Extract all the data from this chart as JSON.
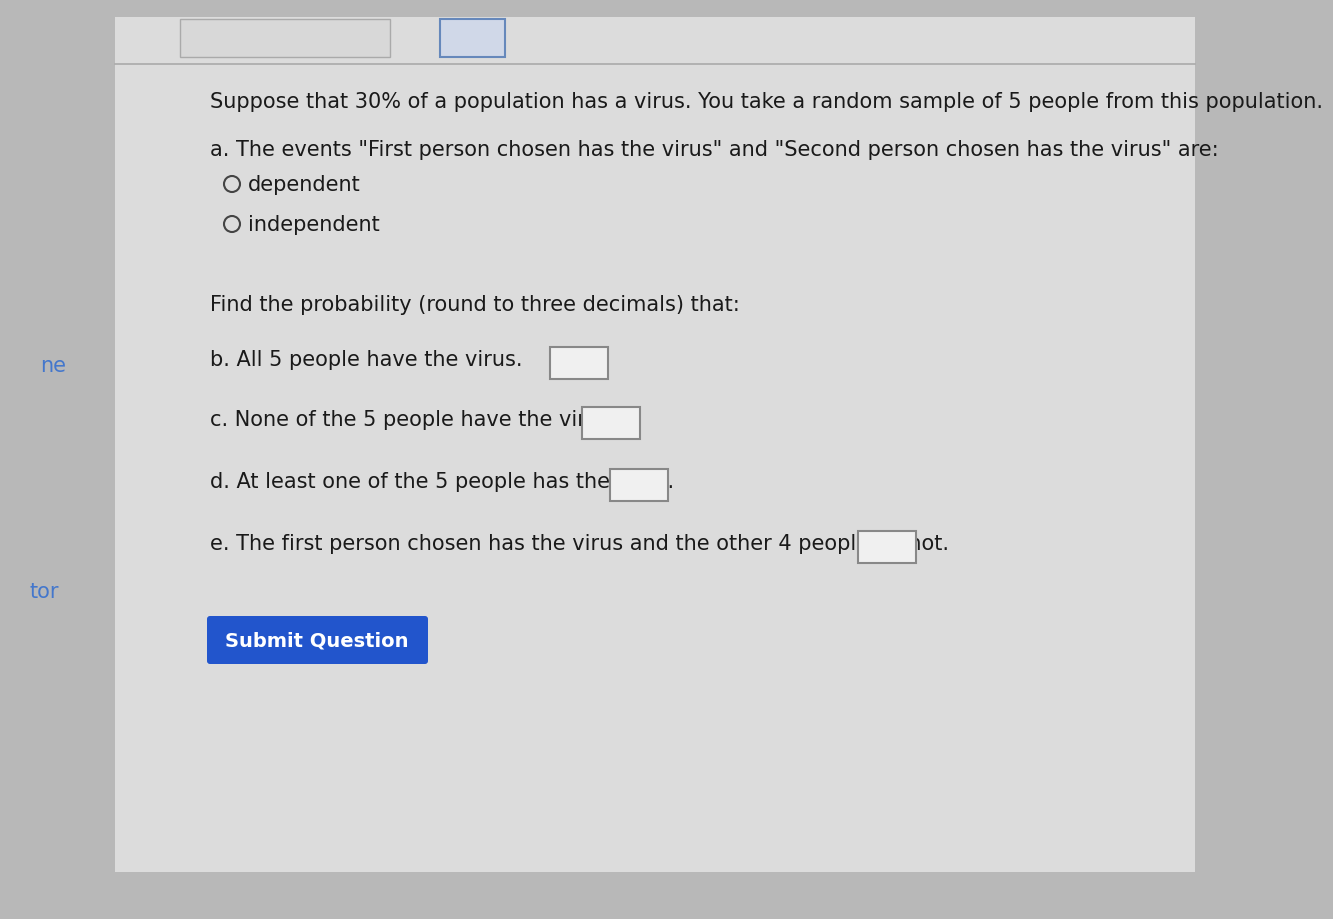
{
  "bg_outer": "#b8b8b8",
  "bg_main": "#dcdcdc",
  "bg_content": "#e8e8e8",
  "text_color": "#1a1a1a",
  "title_text": "Suppose that 30% of a population has a virus. You take a random sample of 5 people from this population.",
  "part_a_label": "a. The events \"First person chosen has the virus\" and \"Second person chosen has the virus\" are:",
  "radio_option1": "dependent",
  "radio_option2": "independent",
  "prob_intro": "Find the probability (round to three decimals) that:",
  "part_b": "b. All 5 people have the virus.",
  "part_c": "c. None of the 5 people have the virus.",
  "part_d": "d. At least one of the 5 people has the virus.",
  "part_e": "e. The first person chosen has the virus and the other 4 people do not.",
  "submit_text": "Submit Question",
  "submit_bg": "#2255cc",
  "submit_text_color": "#ffffff",
  "left_margin_text_ne": "ne",
  "left_margin_text_tor": "tor",
  "left_margin_color": "#4477cc",
  "font_size_main": 15,
  "box_color": "#888888",
  "box_fill": "#f0f0f0"
}
